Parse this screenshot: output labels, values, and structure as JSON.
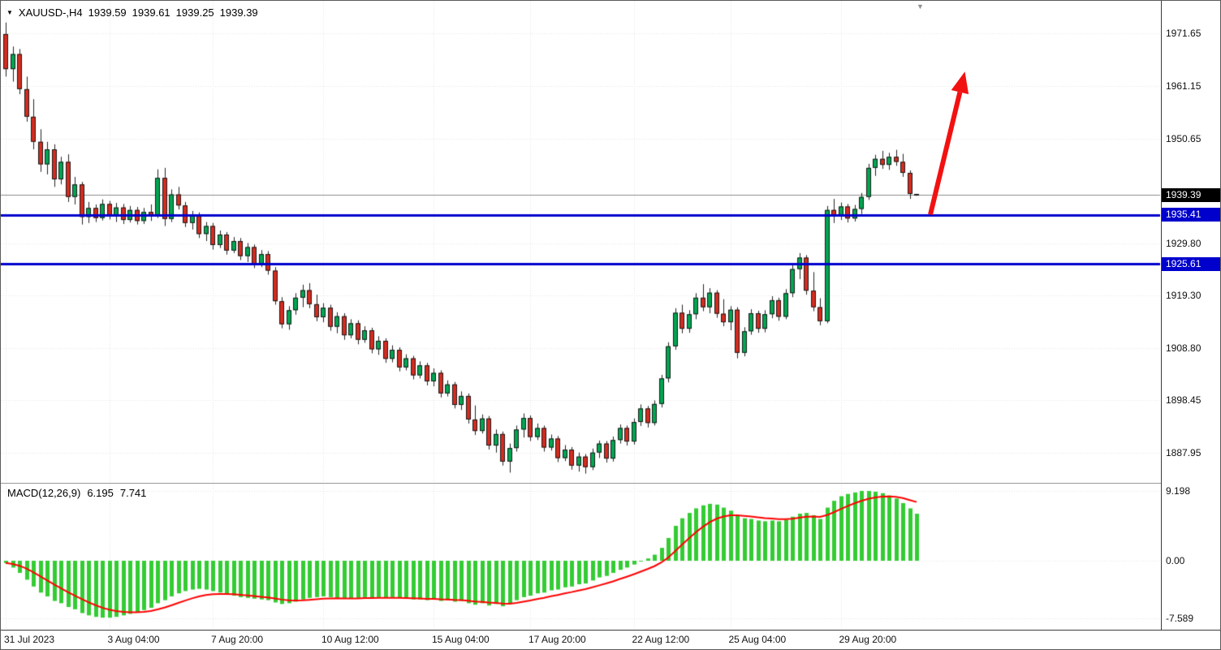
{
  "header": {
    "symbol_timeframe": "XAUUSD-,H4",
    "open": "1939.59",
    "high": "1939.61",
    "low": "1939.25",
    "close": "1939.39"
  },
  "icons": {
    "symbol_dropdown": "▼",
    "shift_marker": "▼"
  },
  "colors": {
    "background": "#FFFFFF",
    "bull": "#00A651",
    "bear": "#D62B1F",
    "wick": "#222222",
    "body_outline": "#1a1a1a",
    "grid": "#E4E4E4",
    "current_line": "#8c8c8c",
    "level_line": "#0000CD",
    "macd_bar": "#33CC33",
    "macd_signal": "#FF0000",
    "arrow": "#F21111",
    "tag_current_bg": "#000000",
    "tag_level_bg": "#0000CD",
    "text": "#000000"
  },
  "chart_data": {
    "type": "candlestick",
    "title": "XAUUSD- H4",
    "price_ticks": [
      "1971.65",
      "1961.15",
      "1950.65",
      "1929.80",
      "1919.30",
      "1908.80",
      "1898.45",
      "1887.95"
    ],
    "time_labels": [
      {
        "label": "31 Jul 2023",
        "index": 0
      },
      {
        "label": "3 Aug 04:00",
        "index": 15
      },
      {
        "label": "7 Aug 20:00",
        "index": 30
      },
      {
        "label": "10 Aug 12:00",
        "index": 46
      },
      {
        "label": "15 Aug 04:00",
        "index": 62
      },
      {
        "label": "17 Aug 20:00",
        "index": 76
      },
      {
        "label": "22 Aug 12:00",
        "index": 91
      },
      {
        "label": "25 Aug 04:00",
        "index": 105
      },
      {
        "label": "29 Aug 20:00",
        "index": 121
      }
    ],
    "horizontal_levels": [
      {
        "price": 1935.41,
        "label": "1935.41"
      },
      {
        "price": 1925.61,
        "label": "1925.61"
      }
    ],
    "current_price": {
      "price": 1939.39,
      "label": "1939.39"
    },
    "candles": [
      [
        1971.5,
        1973.8,
        1963.0,
        1964.5
      ],
      [
        1964.5,
        1969.0,
        1962.0,
        1967.5
      ],
      [
        1967.5,
        1968.5,
        1959.5,
        1960.5
      ],
      [
        1960.5,
        1963.0,
        1954.0,
        1955.0
      ],
      [
        1955.0,
        1958.5,
        1948.5,
        1950.0
      ],
      [
        1950.0,
        1952.5,
        1944.0,
        1945.5
      ],
      [
        1945.5,
        1950.0,
        1943.5,
        1948.5
      ],
      [
        1948.5,
        1949.5,
        1941.0,
        1942.5
      ],
      [
        1942.5,
        1947.0,
        1941.5,
        1946.0
      ],
      [
        1946.0,
        1947.5,
        1938.0,
        1939.0
      ],
      [
        1939.0,
        1943.0,
        1937.5,
        1941.5
      ],
      [
        1941.5,
        1942.0,
        1933.5,
        1935.0
      ],
      [
        1935.0,
        1938.0,
        1933.8,
        1936.8
      ],
      [
        1936.8,
        1937.5,
        1934.0,
        1934.8
      ],
      [
        1934.8,
        1938.5,
        1934.3,
        1937.6
      ],
      [
        1937.6,
        1938.2,
        1934.5,
        1935.3
      ],
      [
        1935.3,
        1937.8,
        1934.0,
        1936.9
      ],
      [
        1936.9,
        1937.6,
        1933.6,
        1934.4
      ],
      [
        1934.4,
        1937.2,
        1933.9,
        1936.4
      ],
      [
        1936.4,
        1937.0,
        1933.5,
        1934.2
      ],
      [
        1934.2,
        1936.8,
        1933.6,
        1936.0
      ],
      [
        1936.0,
        1937.5,
        1934.2,
        1935.1
      ],
      [
        1935.1,
        1944.5,
        1934.8,
        1942.8
      ],
      [
        1942.8,
        1944.8,
        1933.2,
        1934.6
      ],
      [
        1934.6,
        1940.5,
        1934.0,
        1939.5
      ],
      [
        1939.5,
        1941.0,
        1936.5,
        1937.3
      ],
      [
        1937.3,
        1938.0,
        1933.0,
        1933.8
      ],
      [
        1933.8,
        1936.2,
        1932.5,
        1935.4
      ],
      [
        1935.4,
        1935.9,
        1930.8,
        1931.6
      ],
      [
        1931.6,
        1934.0,
        1930.2,
        1933.2
      ],
      [
        1933.2,
        1933.8,
        1928.5,
        1929.4
      ],
      [
        1929.4,
        1932.3,
        1928.8,
        1931.5
      ],
      [
        1931.5,
        1932.0,
        1927.5,
        1928.3
      ],
      [
        1928.3,
        1931.0,
        1927.8,
        1930.2
      ],
      [
        1930.2,
        1930.8,
        1926.4,
        1927.2
      ],
      [
        1927.2,
        1929.8,
        1926.0,
        1929.0
      ],
      [
        1929.0,
        1929.5,
        1924.8,
        1925.6
      ],
      [
        1925.6,
        1928.4,
        1925.0,
        1927.6
      ],
      [
        1927.6,
        1928.2,
        1923.5,
        1924.3
      ],
      [
        1924.3,
        1925.0,
        1917.5,
        1918.2
      ],
      [
        1918.2,
        1919.0,
        1912.8,
        1913.6
      ],
      [
        1913.6,
        1917.2,
        1912.5,
        1916.4
      ],
      [
        1916.4,
        1919.8,
        1915.5,
        1918.9
      ],
      [
        1918.9,
        1921.5,
        1917.0,
        1920.4
      ],
      [
        1920.4,
        1921.8,
        1916.8,
        1917.6
      ],
      [
        1917.6,
        1919.5,
        1914.2,
        1915.0
      ],
      [
        1915.0,
        1917.8,
        1914.0,
        1916.9
      ],
      [
        1916.9,
        1917.5,
        1912.3,
        1913.1
      ],
      [
        1913.1,
        1916.0,
        1911.8,
        1915.2
      ],
      [
        1915.2,
        1915.8,
        1910.5,
        1911.4
      ],
      [
        1911.4,
        1914.6,
        1910.8,
        1913.8
      ],
      [
        1913.8,
        1914.4,
        1909.6,
        1910.5
      ],
      [
        1910.5,
        1913.2,
        1909.9,
        1912.4
      ],
      [
        1912.4,
        1912.9,
        1907.8,
        1908.6
      ],
      [
        1908.6,
        1911.2,
        1907.5,
        1910.3
      ],
      [
        1910.3,
        1910.8,
        1905.9,
        1906.7
      ],
      [
        1906.7,
        1909.4,
        1906.0,
        1908.5
      ],
      [
        1908.5,
        1909.0,
        1904.2,
        1905.0
      ],
      [
        1905.0,
        1907.6,
        1904.4,
        1906.8
      ],
      [
        1906.8,
        1907.3,
        1902.6,
        1903.4
      ],
      [
        1903.4,
        1906.2,
        1902.8,
        1905.4
      ],
      [
        1905.4,
        1905.9,
        1901.4,
        1902.2
      ],
      [
        1902.2,
        1904.8,
        1901.2,
        1903.9
      ],
      [
        1903.9,
        1904.4,
        1899.0,
        1899.8
      ],
      [
        1899.8,
        1902.4,
        1899.2,
        1901.6
      ],
      [
        1901.6,
        1902.1,
        1896.8,
        1897.5
      ],
      [
        1897.5,
        1900.2,
        1896.5,
        1899.3
      ],
      [
        1899.3,
        1899.8,
        1893.8,
        1894.6
      ],
      [
        1894.6,
        1897.4,
        1891.5,
        1892.3
      ],
      [
        1892.3,
        1895.6,
        1891.8,
        1894.8
      ],
      [
        1894.8,
        1895.3,
        1888.6,
        1889.4
      ],
      [
        1889.4,
        1892.6,
        1888.0,
        1891.7
      ],
      [
        1891.7,
        1892.2,
        1885.4,
        1886.2
      ],
      [
        1886.2,
        1889.8,
        1884.0,
        1888.9
      ],
      [
        1888.9,
        1893.4,
        1888.2,
        1892.6
      ],
      [
        1892.6,
        1895.8,
        1891.0,
        1894.9
      ],
      [
        1894.9,
        1895.4,
        1890.3,
        1891.1
      ],
      [
        1891.1,
        1893.8,
        1890.5,
        1892.9
      ],
      [
        1892.9,
        1893.4,
        1888.2,
        1889.0
      ],
      [
        1889.0,
        1891.6,
        1888.4,
        1890.8
      ],
      [
        1890.8,
        1891.3,
        1886.1,
        1886.9
      ],
      [
        1886.9,
        1889.5,
        1886.3,
        1888.6
      ],
      [
        1888.6,
        1889.1,
        1884.6,
        1885.4
      ],
      [
        1885.4,
        1888.0,
        1884.2,
        1887.2
      ],
      [
        1887.2,
        1887.7,
        1883.8,
        1885.1
      ],
      [
        1885.1,
        1888.8,
        1884.5,
        1888.0
      ],
      [
        1888.0,
        1890.4,
        1886.9,
        1889.8
      ],
      [
        1889.8,
        1890.3,
        1886.0,
        1886.8
      ],
      [
        1886.8,
        1891.2,
        1886.2,
        1890.5
      ],
      [
        1890.5,
        1893.6,
        1889.8,
        1892.9
      ],
      [
        1892.9,
        1893.4,
        1889.4,
        1890.2
      ],
      [
        1890.2,
        1894.8,
        1889.6,
        1894.1
      ],
      [
        1894.1,
        1897.6,
        1893.3,
        1896.8
      ],
      [
        1896.8,
        1897.3,
        1893.0,
        1893.9
      ],
      [
        1893.9,
        1898.4,
        1893.4,
        1897.7
      ],
      [
        1897.7,
        1903.5,
        1897.0,
        1902.8
      ],
      [
        1902.8,
        1910.0,
        1902.0,
        1909.2
      ],
      [
        1909.2,
        1916.8,
        1908.5,
        1915.9
      ],
      [
        1915.9,
        1917.5,
        1911.8,
        1912.7
      ],
      [
        1912.7,
        1916.4,
        1911.9,
        1915.6
      ],
      [
        1915.6,
        1919.8,
        1914.6,
        1918.9
      ],
      [
        1918.9,
        1921.6,
        1916.2,
        1917.0
      ],
      [
        1917.0,
        1920.8,
        1915.8,
        1919.9
      ],
      [
        1919.9,
        1920.4,
        1914.9,
        1915.7
      ],
      [
        1915.7,
        1918.6,
        1913.2,
        1914.0
      ],
      [
        1914.0,
        1917.2,
        1912.4,
        1916.5
      ],
      [
        1916.5,
        1917.0,
        1906.8,
        1907.9
      ],
      [
        1907.9,
        1913.0,
        1907.2,
        1912.2
      ],
      [
        1912.2,
        1916.6,
        1911.5,
        1915.8
      ],
      [
        1915.8,
        1916.3,
        1911.9,
        1912.7
      ],
      [
        1912.7,
        1916.4,
        1912.0,
        1915.6
      ],
      [
        1915.6,
        1919.2,
        1914.8,
        1918.4
      ],
      [
        1918.4,
        1918.9,
        1914.3,
        1915.1
      ],
      [
        1915.1,
        1920.6,
        1914.6,
        1919.8
      ],
      [
        1919.8,
        1925.4,
        1919.0,
        1924.6
      ],
      [
        1924.6,
        1927.8,
        1922.6,
        1926.9
      ],
      [
        1926.9,
        1927.4,
        1919.5,
        1920.3
      ],
      [
        1920.3,
        1924.0,
        1916.2,
        1917.0
      ],
      [
        1917.0,
        1918.8,
        1913.4,
        1914.2
      ],
      [
        1914.2,
        1937.2,
        1913.8,
        1936.4
      ],
      [
        1936.4,
        1938.6,
        1933.8,
        1935.2
      ],
      [
        1935.2,
        1937.9,
        1934.4,
        1937.1
      ],
      [
        1937.1,
        1937.6,
        1933.9,
        1934.7
      ],
      [
        1934.7,
        1937.4,
        1934.1,
        1936.6
      ],
      [
        1936.6,
        1939.8,
        1935.6,
        1939.0
      ],
      [
        1939.0,
        1945.6,
        1938.4,
        1944.8
      ],
      [
        1944.8,
        1947.4,
        1943.2,
        1946.6
      ],
      [
        1946.6,
        1948.2,
        1944.6,
        1945.4
      ],
      [
        1945.4,
        1947.8,
        1944.4,
        1947.0
      ],
      [
        1947.0,
        1948.4,
        1945.2,
        1946.0
      ],
      [
        1946.0,
        1947.6,
        1943.0,
        1943.8
      ],
      [
        1943.8,
        1944.3,
        1938.6,
        1939.59
      ],
      [
        1939.59,
        1939.61,
        1939.25,
        1939.39
      ]
    ],
    "macd": {
      "name": "MACD(12,26,9)",
      "last_main": "6.195",
      "last_signal": "7.741",
      "ticks": [
        "9.198",
        "0.00",
        "-7.589"
      ],
      "histogram": [
        -0.3,
        -0.9,
        -1.6,
        -2.5,
        -3.4,
        -4.2,
        -4.7,
        -5.3,
        -5.6,
        -6.1,
        -6.4,
        -6.9,
        -7.2,
        -7.4,
        -7.5,
        -7.5,
        -7.4,
        -7.2,
        -7.0,
        -6.8,
        -6.5,
        -6.2,
        -5.6,
        -5.2,
        -4.7,
        -4.3,
        -4.0,
        -3.8,
        -3.7,
        -3.8,
        -4.0,
        -4.2,
        -4.4,
        -4.6,
        -4.8,
        -4.9,
        -5.0,
        -5.1,
        -5.2,
        -5.5,
        -5.7,
        -5.6,
        -5.4,
        -5.1,
        -4.9,
        -4.8,
        -4.7,
        -4.8,
        -4.9,
        -5.0,
        -5.0,
        -4.9,
        -4.8,
        -4.9,
        -4.8,
        -4.9,
        -4.8,
        -4.9,
        -5.0,
        -5.1,
        -5.1,
        -5.2,
        -5.1,
        -5.3,
        -5.2,
        -5.4,
        -5.3,
        -5.6,
        -5.8,
        -5.6,
        -5.9,
        -5.7,
        -6.0,
        -5.7,
        -5.2,
        -4.8,
        -4.6,
        -4.3,
        -4.2,
        -3.9,
        -3.8,
        -3.5,
        -3.4,
        -3.1,
        -3.0,
        -2.6,
        -2.2,
        -2.0,
        -1.6,
        -1.2,
        -0.9,
        -0.5,
        -0.1,
        0.3,
        0.8,
        1.7,
        3.0,
        4.6,
        5.6,
        6.3,
        6.9,
        7.3,
        7.5,
        7.4,
        7.0,
        6.6,
        6.0,
        5.6,
        5.5,
        5.3,
        5.2,
        5.3,
        5.2,
        5.4,
        5.8,
        6.2,
        6.3,
        6.0,
        5.5,
        7.0,
        7.9,
        8.5,
        8.8,
        9.0,
        9.2,
        9.198,
        9.1,
        8.9,
        8.6,
        8.2,
        7.6,
        6.9,
        6.195
      ],
      "signal": [
        -0.3,
        -0.42,
        -0.66,
        -1.03,
        -1.5,
        -2.04,
        -2.57,
        -3.12,
        -3.62,
        -4.12,
        -4.58,
        -5.04,
        -5.47,
        -5.86,
        -6.19,
        -6.45,
        -6.64,
        -6.75,
        -6.8,
        -6.8,
        -6.74,
        -6.63,
        -6.42,
        -6.18,
        -5.88,
        -5.56,
        -5.25,
        -4.96,
        -4.71,
        -4.53,
        -4.42,
        -4.38,
        -4.38,
        -4.42,
        -4.5,
        -4.58,
        -4.66,
        -4.75,
        -4.84,
        -4.97,
        -5.12,
        -5.22,
        -5.25,
        -5.22,
        -5.16,
        -5.09,
        -5.01,
        -4.97,
        -4.95,
        -4.96,
        -4.97,
        -4.96,
        -4.93,
        -4.92,
        -4.9,
        -4.9,
        -4.88,
        -4.88,
        -4.91,
        -4.94,
        -4.98,
        -5.02,
        -5.04,
        -5.09,
        -5.11,
        -5.17,
        -5.2,
        -5.28,
        -5.38,
        -5.43,
        -5.52,
        -5.56,
        -5.64,
        -5.66,
        -5.56,
        -5.41,
        -5.25,
        -5.06,
        -4.89,
        -4.69,
        -4.51,
        -4.31,
        -4.13,
        -3.92,
        -3.74,
        -3.51,
        -3.25,
        -3.0,
        -2.72,
        -2.41,
        -2.11,
        -1.79,
        -1.45,
        -1.1,
        -0.72,
        -0.24,
        0.41,
        1.25,
        2.12,
        2.95,
        3.74,
        4.45,
        5.06,
        5.53,
        5.82,
        5.98,
        5.98,
        5.91,
        5.83,
        5.72,
        5.62,
        5.55,
        5.48,
        5.47,
        5.53,
        5.67,
        5.79,
        5.84,
        5.77,
        6.01,
        6.39,
        6.81,
        7.21,
        7.57,
        7.89,
        8.15,
        8.35,
        8.46,
        8.48,
        8.43,
        8.26,
        7.99,
        7.741
      ]
    },
    "annotation_arrow": {
      "direction": "up",
      "from": {
        "index": 134,
        "price": 1935.5
      },
      "to": {
        "index": 139,
        "price": 1964.0
      }
    }
  }
}
